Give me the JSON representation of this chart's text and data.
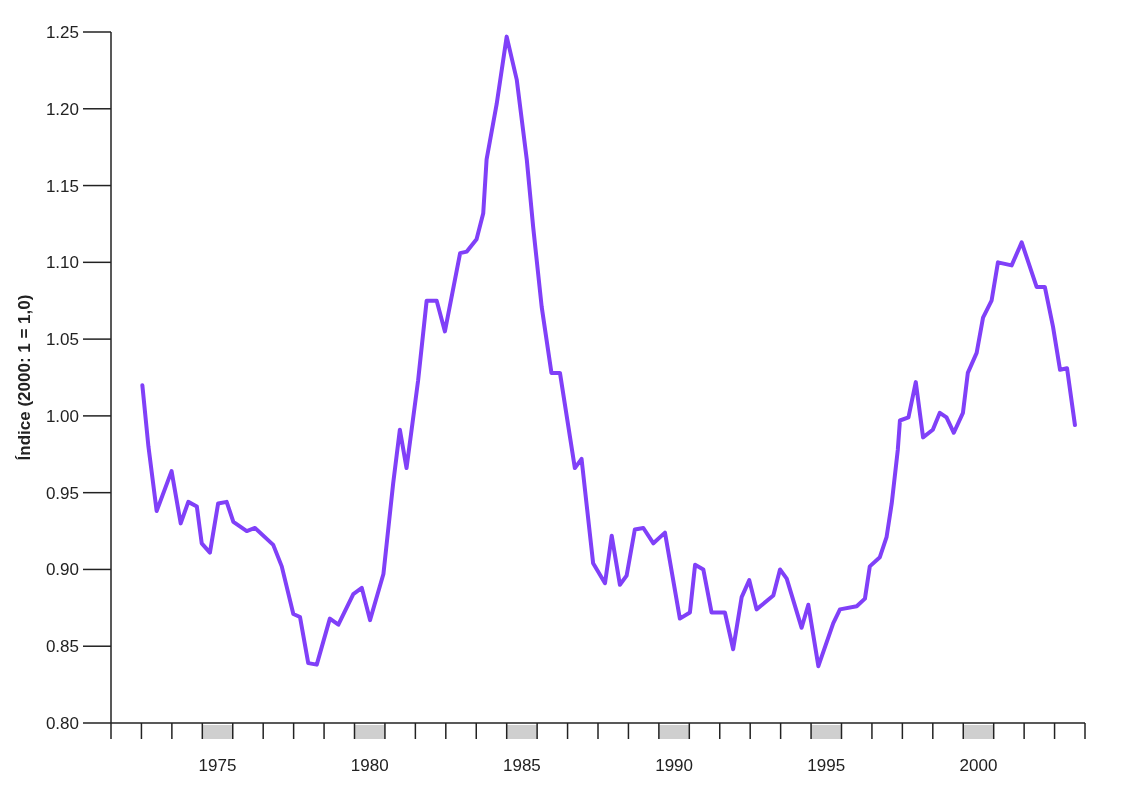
{
  "chart_data": {
    "type": "line",
    "ylabel": "Índice (2000: 1 = 1,0)",
    "xlim": [
      1972,
      2004
    ],
    "xticks": [
      {
        "value": 1972,
        "label": null
      },
      {
        "value": 1973,
        "label": null
      },
      {
        "value": 1974,
        "label": null
      },
      {
        "value": 1975,
        "label": null
      },
      {
        "value": 1976,
        "label": null
      },
      {
        "value": 1977,
        "label": null
      },
      {
        "value": 1978,
        "label": null
      },
      {
        "value": 1979,
        "label": null
      },
      {
        "value": 1980,
        "label": null
      },
      {
        "value": 1981,
        "label": null
      },
      {
        "value": 1982,
        "label": null
      },
      {
        "value": 1983,
        "label": null
      },
      {
        "value": 1984,
        "label": null
      },
      {
        "value": 1985,
        "label": null
      },
      {
        "value": 1986,
        "label": null
      },
      {
        "value": 1987,
        "label": null
      },
      {
        "value": 1988,
        "label": null
      },
      {
        "value": 1989,
        "label": null
      },
      {
        "value": 1990,
        "label": null
      },
      {
        "value": 1991,
        "label": null
      },
      {
        "value": 1992,
        "label": null
      },
      {
        "value": 1993,
        "label": null
      },
      {
        "value": 1994,
        "label": null
      },
      {
        "value": 1995,
        "label": null
      },
      {
        "value": 1996,
        "label": null
      },
      {
        "value": 1997,
        "label": null
      },
      {
        "value": 1998,
        "label": null
      },
      {
        "value": 1999,
        "label": null
      },
      {
        "value": 2000,
        "label": null
      },
      {
        "value": 2001,
        "label": null
      },
      {
        "value": 2002,
        "label": null
      },
      {
        "value": 2003,
        "label": null
      },
      {
        "value": 2004,
        "label": null
      },
      {
        "value": 1975.5,
        "label": "1975"
      },
      {
        "value": 1980.5,
        "label": "1980"
      },
      {
        "value": 1985.5,
        "label": "1985"
      },
      {
        "value": 1990.5,
        "label": "1990"
      },
      {
        "value": 1995.5,
        "label": "1995"
      },
      {
        "value": 2000.5,
        "label": "2000"
      }
    ],
    "ylim": [
      0.8,
      1.25
    ],
    "yticks": [
      {
        "value": 0.8,
        "label": "0.80"
      },
      {
        "value": 0.85,
        "label": "0.85"
      },
      {
        "value": 0.9,
        "label": "0.90"
      },
      {
        "value": 0.95,
        "label": "0.95"
      },
      {
        "value": 1.0,
        "label": "1.00"
      },
      {
        "value": 1.05,
        "label": "1.05"
      },
      {
        "value": 1.1,
        "label": "1.10"
      },
      {
        "value": 1.15,
        "label": "1.15"
      },
      {
        "value": 1.2,
        "label": "1.20"
      },
      {
        "value": 1.25,
        "label": "1.25"
      }
    ],
    "grid": false,
    "marker": "none",
    "line_style": "solid",
    "series": [
      {
        "color": "#8040f8",
        "x": [
          1973.03,
          1973.23,
          1973.5,
          1973.99,
          1974.29,
          1974.54,
          1974.82,
          1974.98,
          1975.25,
          1975.52,
          1975.8,
          1976.02,
          1976.46,
          1976.73,
          1977.33,
          1977.61,
          1977.99,
          1978.21,
          1978.48,
          1978.76,
          1979.19,
          1979.47,
          1979.96,
          1980.24,
          1980.51,
          1980.95,
          1981.27,
          1981.49,
          1981.71,
          1982.09,
          1982.37,
          1982.7,
          1982.97,
          1983.47,
          1983.69,
          1984.01,
          1984.23,
          1984.34,
          1984.67,
          1985.0,
          1985.33,
          1985.66,
          1985.87,
          1986.15,
          1986.47,
          1986.75,
          1987.24,
          1987.46,
          1987.84,
          1988.23,
          1988.45,
          1988.72,
          1988.94,
          1989.21,
          1989.49,
          1989.82,
          1990.2,
          1990.69,
          1991.02,
          1991.19,
          1991.46,
          1991.73,
          1992.17,
          1992.44,
          1992.72,
          1992.97,
          1993.21,
          1993.76,
          1993.98,
          1994.2,
          1994.69,
          1994.91,
          1995.24,
          1995.73,
          1995.95,
          1996.5,
          1996.77,
          1996.93,
          1997.26,
          1997.48,
          1997.65,
          1997.85,
          1997.92,
          1998.2,
          1998.44,
          1998.68,
          1999.0,
          1999.23,
          1999.45,
          1999.69,
          1999.99,
          2000.15,
          2000.44,
          2000.65,
          2000.93,
          2001.14,
          2001.59,
          2001.92,
          2002.41,
          2002.68,
          2002.95,
          2003.18,
          2003.41,
          2003.67
        ],
        "values": [
          1.02,
          0.98,
          0.938,
          0.964,
          0.93,
          0.944,
          0.941,
          0.917,
          0.911,
          0.943,
          0.944,
          0.931,
          0.925,
          0.927,
          0.916,
          0.902,
          0.871,
          0.869,
          0.839,
          0.838,
          0.868,
          0.864,
          0.884,
          0.888,
          0.867,
          0.897,
          0.956,
          0.991,
          0.966,
          1.023,
          1.075,
          1.075,
          1.055,
          1.106,
          1.107,
          1.115,
          1.132,
          1.167,
          1.203,
          1.247,
          1.219,
          1.167,
          1.123,
          1.071,
          1.028,
          1.028,
          0.966,
          0.972,
          0.904,
          0.891,
          0.922,
          0.89,
          0.896,
          0.926,
          0.927,
          0.917,
          0.924,
          0.868,
          0.872,
          0.903,
          0.9,
          0.872,
          0.872,
          0.848,
          0.882,
          0.893,
          0.874,
          0.883,
          0.9,
          0.894,
          0.862,
          0.877,
          0.837,
          0.865,
          0.874,
          0.876,
          0.881,
          0.902,
          0.908,
          0.921,
          0.943,
          0.978,
          0.997,
          0.999,
          1.022,
          0.986,
          0.991,
          1.002,
          0.999,
          0.989,
          1.002,
          1.028,
          1.041,
          1.064,
          1.075,
          1.1,
          1.098,
          1.113,
          1.084,
          1.084,
          1.058,
          1.03,
          1.031,
          0.994
        ]
      }
    ]
  }
}
